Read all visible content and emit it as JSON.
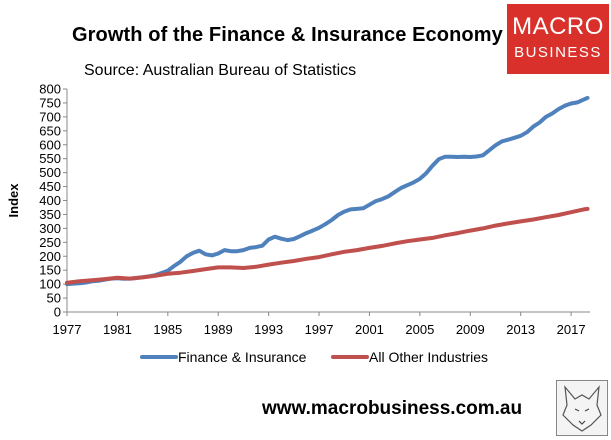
{
  "header": {
    "title": "Growth of the Finance & Insurance Economy",
    "source": "Source: Australian Bureau of Statistics"
  },
  "logo": {
    "line1": "MACRO",
    "line2": "BUSINESS",
    "color": "#d9302b"
  },
  "footer": {
    "url": "www.macrobusiness.com.au"
  },
  "chart_data": {
    "type": "line",
    "title": "Growth of the Finance & Insurance Economy",
    "subtitle": "Source: Australian Bureau of Statistics",
    "xlabel": "",
    "ylabel": "Index",
    "xlim": [
      1977,
      2018.5
    ],
    "ylim": [
      0,
      800
    ],
    "xticks": [
      1977,
      1981,
      1985,
      1989,
      1993,
      1997,
      2001,
      2005,
      2009,
      2013,
      2017
    ],
    "yticks": [
      0,
      50,
      100,
      150,
      200,
      250,
      300,
      350,
      400,
      450,
      500,
      550,
      600,
      650,
      700,
      750,
      800
    ],
    "grid": false,
    "legend_position": "bottom",
    "series": [
      {
        "name": "Finance & Insurance",
        "color": "#4f81bd",
        "x": [
          1977,
          1977.5,
          1978,
          1978.5,
          1979,
          1979.5,
          1980,
          1980.5,
          1981,
          1981.5,
          1982,
          1982.5,
          1983,
          1983.5,
          1984,
          1984.5,
          1985,
          1985.5,
          1986,
          1986.5,
          1987,
          1987.5,
          1988,
          1988.5,
          1989,
          1989.5,
          1990,
          1990.5,
          1991,
          1991.5,
          1992,
          1992.5,
          1993,
          1993.5,
          1994,
          1994.5,
          1995,
          1995.5,
          1996,
          1996.5,
          1997,
          1997.5,
          1998,
          1998.5,
          1999,
          1999.5,
          2000,
          2000.5,
          2001,
          2001.5,
          2002,
          2002.5,
          2003,
          2003.5,
          2004,
          2004.5,
          2005,
          2005.5,
          2006,
          2006.5,
          2007,
          2007.5,
          2008,
          2008.5,
          2009,
          2009.5,
          2010,
          2010.5,
          2011,
          2011.5,
          2012,
          2012.5,
          2013,
          2013.5,
          2014,
          2014.5,
          2015,
          2015.5,
          2016,
          2016.5,
          2017,
          2017.5,
          2018,
          2018.3
        ],
        "values": [
          100,
          102,
          103,
          106,
          110,
          112,
          116,
          120,
          121,
          119,
          120,
          122,
          125,
          128,
          132,
          140,
          148,
          165,
          180,
          200,
          212,
          220,
          207,
          203,
          210,
          222,
          218,
          218,
          222,
          230,
          233,
          238,
          260,
          270,
          263,
          258,
          262,
          272,
          283,
          292,
          302,
          315,
          330,
          348,
          360,
          368,
          370,
          372,
          385,
          398,
          405,
          415,
          430,
          445,
          455,
          465,
          478,
          498,
          525,
          548,
          557,
          557,
          556,
          557,
          556,
          558,
          562,
          580,
          598,
          612,
          618,
          625,
          632,
          645,
          665,
          680,
          700,
          712,
          728,
          740,
          748,
          752,
          762,
          768
        ]
      },
      {
        "name": "All Other Industries",
        "color": "#c0504d",
        "x": [
          1977,
          1978,
          1979,
          1980,
          1981,
          1982,
          1983,
          1984,
          1985,
          1986,
          1987,
          1988,
          1989,
          1990,
          1991,
          1992,
          1993,
          1994,
          1995,
          1996,
          1997,
          1998,
          1999,
          2000,
          2001,
          2002,
          2003,
          2004,
          2005,
          2006,
          2007,
          2008,
          2009,
          2010,
          2011,
          2012,
          2013,
          2014,
          2015,
          2016,
          2017,
          2018,
          2018.3
        ],
        "values": [
          105,
          110,
          114,
          118,
          123,
          120,
          124,
          130,
          137,
          141,
          147,
          154,
          160,
          160,
          158,
          162,
          170,
          177,
          183,
          191,
          197,
          207,
          216,
          222,
          230,
          237,
          246,
          254,
          260,
          266,
          275,
          283,
          292,
          300,
          310,
          318,
          325,
          332,
          340,
          348,
          358,
          368,
          370
        ]
      }
    ]
  }
}
